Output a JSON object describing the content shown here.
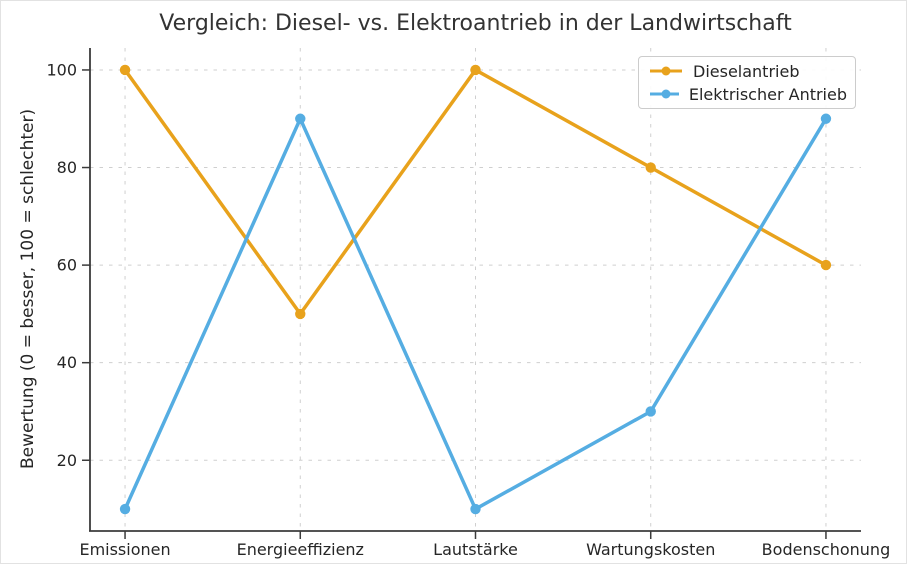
{
  "chart_data": {
    "type": "line",
    "title": "Vergleich: Diesel- vs. Elektroantrieb in der Landwirtschaft",
    "xlabel": "",
    "ylabel": "Bewertung (0 = besser, 100 = schlechter)",
    "categories": [
      "Emissionen",
      "Energieeffizienz",
      "Lautstärke",
      "Wartungskosten",
      "Bodenschonung"
    ],
    "series": [
      {
        "name": "Dieselantrieb",
        "color": "#E8A21C",
        "values": [
          100,
          50,
          100,
          80,
          60
        ]
      },
      {
        "name": "Elektrischer Antrieb",
        "color": "#55ADE2",
        "values": [
          10,
          90,
          10,
          30,
          90
        ]
      }
    ],
    "yticks": [
      20,
      40,
      60,
      80,
      100
    ],
    "ylim": [
      5.5,
      104.5
    ],
    "grid": true,
    "grid_style": "dashed",
    "marker": "circle",
    "legend_position": "upper right"
  },
  "colors": {
    "background": "#ffffff",
    "grid": "#cfcfcf",
    "spine": "#3b3b3b",
    "tick_text": "#262626",
    "title_text": "#333333",
    "legend_border": "#cccccc"
  }
}
